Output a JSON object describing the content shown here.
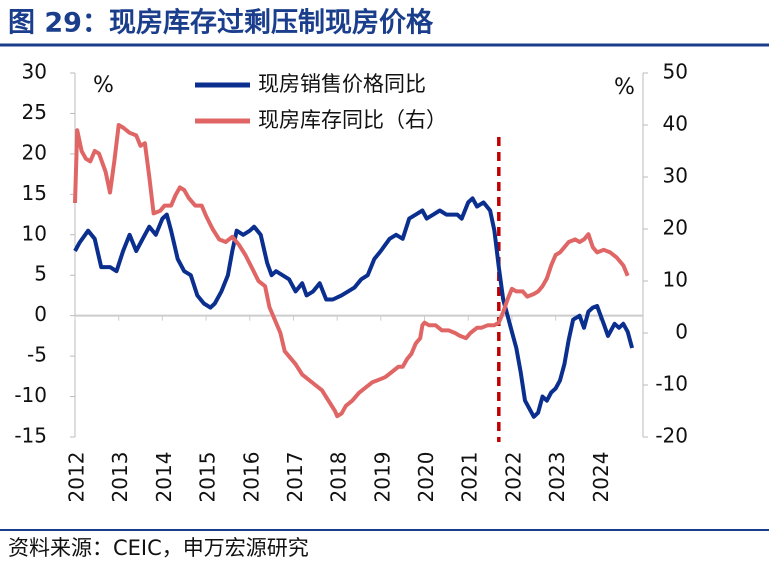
{
  "chart_data": {
    "type": "line",
    "title": "图 29：现房库存过剩压制现房价格",
    "source": "资料来源：CEIC，申万宏源研究",
    "y_unit": "%",
    "y2_unit": "%",
    "xlim": [
      2012,
      2025
    ],
    "xticks": [
      2012,
      2013,
      2014,
      2015,
      2016,
      2017,
      2018,
      2019,
      2020,
      2021,
      2022,
      2023,
      2024
    ],
    "ylim": [
      -15,
      30
    ],
    "yticks": [
      -15,
      -10,
      -5,
      0,
      5,
      10,
      15,
      20,
      25,
      30
    ],
    "y2lim": [
      -20,
      50
    ],
    "y2ticks": [
      -20,
      -10,
      0,
      10,
      20,
      30,
      40,
      50
    ],
    "vline": {
      "x": 2021.7,
      "color": "#c00000"
    },
    "series": [
      {
        "name": "现房销售价格同比",
        "color": "#0b2f8f",
        "axis": "y",
        "x": [
          2012.0,
          2012.1,
          2012.3,
          2012.45,
          2012.6,
          2012.8,
          2012.95,
          2013.1,
          2013.25,
          2013.4,
          2013.55,
          2013.7,
          2013.85,
          2014.0,
          2014.1,
          2014.2,
          2014.35,
          2014.5,
          2014.65,
          2014.8,
          2014.95,
          2015.1,
          2015.2,
          2015.35,
          2015.5,
          2015.6,
          2015.7,
          2015.85,
          2016.0,
          2016.1,
          2016.25,
          2016.4,
          2016.5,
          2016.6,
          2016.75,
          2016.9,
          2017.05,
          2017.2,
          2017.3,
          2017.45,
          2017.6,
          2017.75,
          2017.9,
          2018.1,
          2018.25,
          2018.4,
          2018.55,
          2018.7,
          2018.85,
          2019.0,
          2019.2,
          2019.35,
          2019.5,
          2019.65,
          2019.8,
          2019.95,
          2020.05,
          2020.2,
          2020.35,
          2020.5,
          2020.6,
          2020.75,
          2020.85,
          2021.0,
          2021.1,
          2021.2,
          2021.35,
          2021.5,
          2021.6,
          2021.7,
          2021.8,
          2021.9,
          2022.0,
          2022.1,
          2022.2,
          2022.3,
          2022.4,
          2022.5,
          2022.6,
          2022.7,
          2022.8,
          2022.9,
          2023.0,
          2023.1,
          2023.2,
          2023.3,
          2023.4,
          2023.55,
          2023.65,
          2023.75,
          2023.85,
          2023.95,
          2024.1,
          2024.2,
          2024.35,
          2024.45,
          2024.55,
          2024.65,
          2024.75
        ],
        "values": [
          8,
          9,
          10.5,
          9.5,
          6,
          6,
          5.5,
          8,
          10,
          8,
          9.5,
          11,
          10,
          12,
          12.5,
          10.5,
          7,
          5.5,
          5,
          2.5,
          1.5,
          1,
          1.5,
          3,
          5,
          8,
          10.5,
          10,
          10.5,
          11,
          10,
          6.5,
          5,
          5.5,
          5,
          4.5,
          3,
          4,
          2.5,
          3,
          4,
          2,
          2,
          2.5,
          3,
          3.5,
          4.5,
          5,
          7,
          8,
          9.5,
          10,
          9.5,
          12,
          12.5,
          13,
          12,
          12.5,
          13,
          12.5,
          12.5,
          12.5,
          12,
          14,
          14.5,
          13.5,
          14,
          13,
          10.5,
          6,
          2,
          0,
          -2,
          -4,
          -7,
          -10.5,
          -11.5,
          -12.5,
          -12,
          -10,
          -10.5,
          -9.5,
          -9,
          -8,
          -6,
          -3,
          -0.5,
          0,
          -1.5,
          0.5,
          1,
          1.2,
          -1,
          -2.5,
          -1,
          -1.5,
          -1,
          -2,
          -4
        ]
      },
      {
        "name": "现房库存同比（右）",
        "color": "#e06666",
        "axis": "y2",
        "x": [
          2012.0,
          2012.05,
          2012.15,
          2012.25,
          2012.35,
          2012.45,
          2012.55,
          2012.7,
          2012.8,
          2012.9,
          2013.0,
          2013.1,
          2013.25,
          2013.4,
          2013.5,
          2013.6,
          2013.7,
          2013.8,
          2013.95,
          2014.05,
          2014.2,
          2014.3,
          2014.4,
          2014.5,
          2014.6,
          2014.75,
          2014.9,
          2015.0,
          2015.15,
          2015.3,
          2015.45,
          2015.6,
          2015.75,
          2015.9,
          2016.05,
          2016.2,
          2016.35,
          2016.45,
          2016.55,
          2016.7,
          2016.8,
          2016.9,
          2017.05,
          2017.2,
          2017.35,
          2017.5,
          2017.65,
          2017.8,
          2017.95,
          2018.0,
          2018.1,
          2018.2,
          2018.35,
          2018.5,
          2018.65,
          2018.8,
          2018.95,
          2019.1,
          2019.25,
          2019.4,
          2019.5,
          2019.6,
          2019.7,
          2019.8,
          2019.9,
          2019.95,
          2020.0,
          2020.1,
          2020.25,
          2020.4,
          2020.55,
          2020.7,
          2020.8,
          2020.95,
          2021.05,
          2021.2,
          2021.3,
          2021.45,
          2021.6,
          2021.7,
          2021.8,
          2021.9,
          2022.0,
          2022.1,
          2022.25,
          2022.35,
          2022.5,
          2022.6,
          2022.7,
          2022.8,
          2022.9,
          2023.0,
          2023.1,
          2023.2,
          2023.3,
          2023.45,
          2023.55,
          2023.65,
          2023.75,
          2023.85,
          2023.95,
          2024.1,
          2024.25,
          2024.4,
          2024.55,
          2024.65
        ],
        "values": [
          25,
          39,
          35,
          33.5,
          33,
          35,
          34.5,
          31,
          27,
          33,
          40,
          39.5,
          38.5,
          38,
          36,
          36.5,
          30,
          23,
          23.5,
          24.5,
          24.5,
          26.5,
          28,
          27.5,
          26,
          24.5,
          24.5,
          22.5,
          20,
          18,
          17.5,
          18.5,
          17,
          15,
          12.5,
          10,
          9,
          5,
          3,
          0,
          -3.5,
          -4.5,
          -6,
          -8,
          -9,
          -10,
          -11,
          -13,
          -15,
          -16,
          -15.5,
          -14,
          -13,
          -11.5,
          -10.5,
          -9.5,
          -9,
          -8.5,
          -7.5,
          -6.5,
          -6.5,
          -5,
          -4,
          -2,
          -1,
          1.5,
          2,
          1.5,
          1.5,
          0.5,
          0.5,
          0,
          -0.5,
          -1,
          0,
          1,
          1,
          1.5,
          1.5,
          2,
          4,
          6.5,
          8.5,
          8,
          8,
          7,
          7.5,
          8,
          9,
          10.5,
          13,
          15,
          15.5,
          16.5,
          17.5,
          18,
          17.5,
          18,
          19,
          16.5,
          15.5,
          16,
          15.5,
          14.5,
          13,
          11
        ]
      }
    ]
  }
}
